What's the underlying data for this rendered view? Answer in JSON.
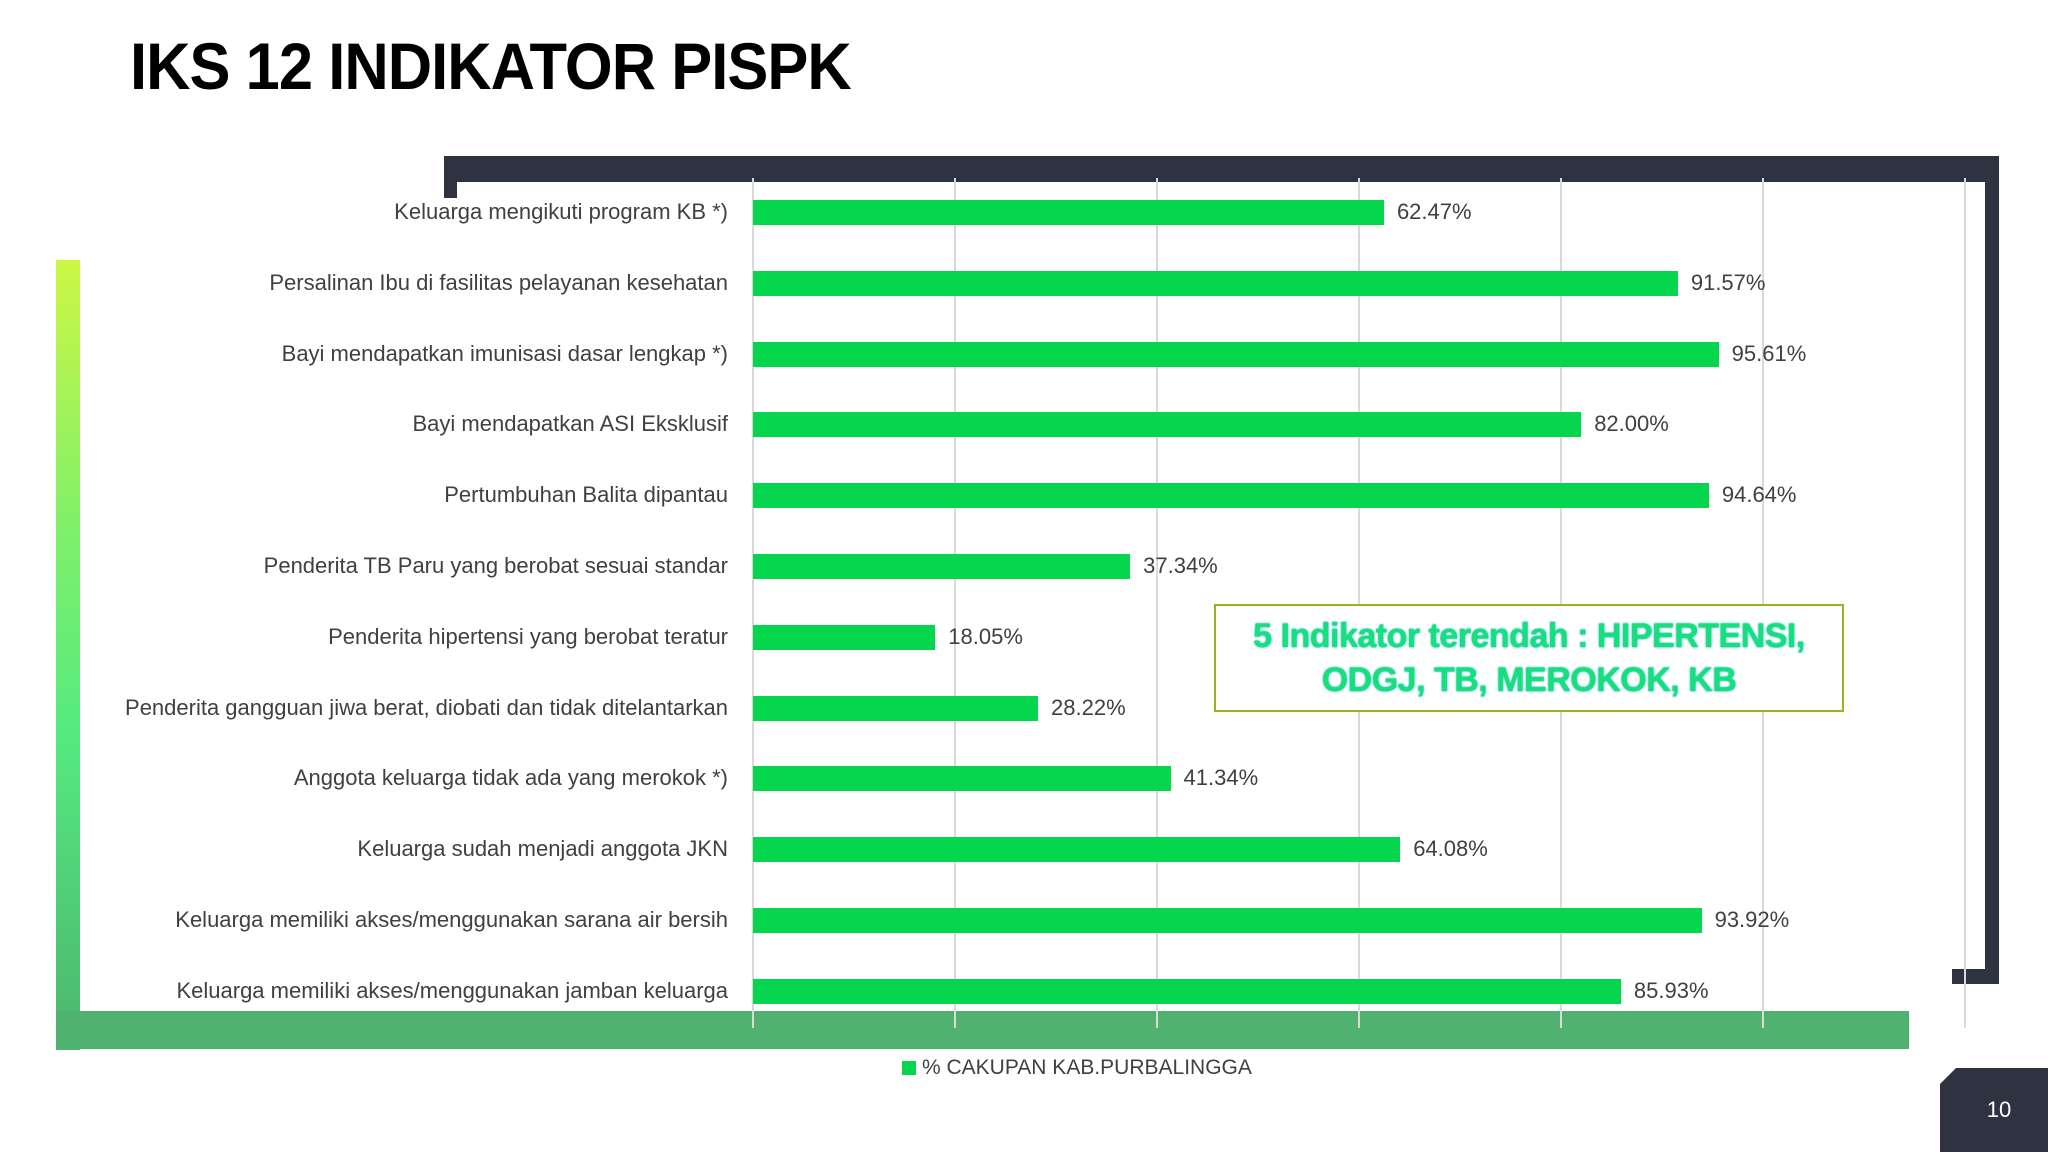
{
  "slide": {
    "title": "IKS 12 INDIKATOR PISPK",
    "page_number": "10"
  },
  "callout": {
    "line1": "5 Indikator terendah : HIPERTENSI,",
    "line2": "ODGJ, TB, MEROKOK, KB"
  },
  "legend": {
    "label": "% CAKUPAN KAB.PURBALINGGA",
    "color": "#06d64d"
  },
  "colors": {
    "bar": "#06d64d",
    "frame_dark": "#2f3240",
    "frame_green": "#4fb26f",
    "callout_border": "#9ab31b",
    "callout_text": "#16e07a"
  },
  "chart_data": {
    "type": "bar",
    "orientation": "horizontal",
    "title": "IKS 12 INDIKATOR PISPK",
    "xlabel": "",
    "ylabel": "",
    "xlim": [
      0,
      120
    ],
    "grid": true,
    "legend_position": "bottom",
    "categories": [
      "Keluarga mengikuti program KB *)",
      "Persalinan Ibu di fasilitas pelayanan kesehatan",
      "Bayi mendapatkan imunisasi dasar lengkap *)",
      "Bayi mendapatkan ASI Eksklusif",
      "Pertumbuhan Balita dipantau",
      "Penderita TB Paru yang berobat sesuai standar",
      "Penderita hipertensi yang berobat teratur",
      "Penderita gangguan jiwa berat, diobati dan tidak ditelantarkan",
      "Anggota keluarga tidak ada yang merokok *)",
      "Keluarga sudah menjadi anggota JKN",
      "Keluarga memiliki akses/menggunakan sarana air bersih",
      "Keluarga memiliki akses/menggunakan jamban keluarga"
    ],
    "series": [
      {
        "name": "% CAKUPAN KAB.PURBALINGGA",
        "values": [
          62.47,
          91.57,
          95.61,
          82.0,
          94.64,
          37.34,
          18.05,
          28.22,
          41.34,
          64.08,
          93.92,
          85.93
        ],
        "labels": [
          "62.47%",
          "91.57%",
          "95.61%",
          "82.00%",
          "94.64%",
          "37.34%",
          "18.05%",
          "28.22%",
          "41.34%",
          "64.08%",
          "93.92%",
          "85.93%"
        ]
      }
    ],
    "annotations": [
      "5 Indikator terendah : HIPERTENSI, ODGJ, TB, MEROKOK, KB"
    ]
  }
}
